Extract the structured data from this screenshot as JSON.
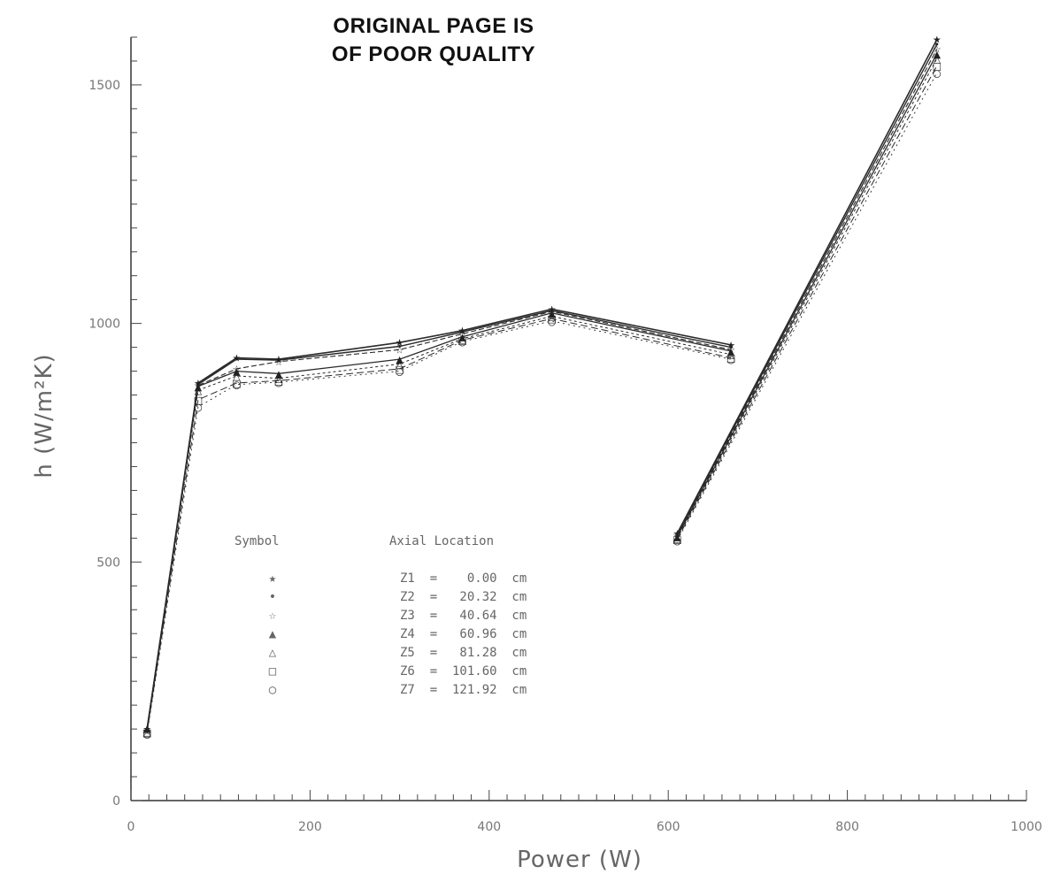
{
  "stamp": {
    "line1": "ORIGINAL PAGE IS",
    "line2": "OF POOR QUALITY"
  },
  "chart_data": {
    "type": "line",
    "xlabel": "Power (W)",
    "ylabel": "h (W/m²K)",
    "xlim": [
      0,
      1000
    ],
    "ylim": [
      0,
      1600
    ],
    "x_ticks": [
      "0",
      "200",
      "400",
      "600",
      "800",
      "1000"
    ],
    "y_ticks": [
      "0",
      "500",
      "1000",
      "1500"
    ],
    "grid": false,
    "legend": {
      "header_symbol": "Symbol",
      "header_location": "Axial Location",
      "entries": [
        {
          "symbol": "★",
          "label": "Z1  =    0.00  cm"
        },
        {
          "symbol": "•",
          "label": "Z2  =   20.32  cm"
        },
        {
          "symbol": "☆",
          "label": "Z3  =   40.64  cm"
        },
        {
          "symbol": "▲",
          "label": "Z4  =   60.96  cm"
        },
        {
          "symbol": "△",
          "label": "Z5  =   81.28  cm"
        },
        {
          "symbol": "□",
          "label": "Z6  =  101.60  cm"
        },
        {
          "symbol": "○",
          "label": "Z7  =  121.92  cm"
        }
      ]
    },
    "series": [
      {
        "marker": "★",
        "points": [
          [
            18,
            150
          ],
          [
            75,
            875
          ],
          [
            118,
            928
          ],
          [
            165,
            925
          ],
          [
            300,
            960
          ],
          [
            370,
            985
          ],
          [
            470,
            1030
          ],
          [
            670,
            955
          ],
          [
            610,
            560
          ],
          [
            900,
            1595
          ]
        ]
      },
      {
        "marker": "•",
        "points": [
          [
            18,
            148
          ],
          [
            75,
            872
          ],
          [
            118,
            925
          ],
          [
            165,
            923
          ],
          [
            300,
            952
          ],
          [
            370,
            982
          ],
          [
            470,
            1027
          ],
          [
            670,
            950
          ],
          [
            610,
            558
          ],
          [
            900,
            1585
          ]
        ]
      },
      {
        "marker": "☆",
        "points": [
          [
            18,
            146
          ],
          [
            75,
            870
          ],
          [
            118,
            905
          ],
          [
            165,
            920
          ],
          [
            300,
            945
          ],
          [
            370,
            978
          ],
          [
            470,
            1025
          ],
          [
            670,
            945
          ],
          [
            610,
            555
          ],
          [
            900,
            1575
          ]
        ]
      },
      {
        "marker": "▲",
        "points": [
          [
            18,
            152
          ],
          [
            75,
            868
          ],
          [
            118,
            900
          ],
          [
            165,
            895
          ],
          [
            300,
            925
          ],
          [
            370,
            972
          ],
          [
            470,
            1022
          ],
          [
            670,
            942
          ],
          [
            610,
            553
          ],
          [
            900,
            1565
          ]
        ]
      },
      {
        "marker": "△",
        "points": [
          [
            18,
            145
          ],
          [
            75,
            860
          ],
          [
            118,
            890
          ],
          [
            165,
            885
          ],
          [
            300,
            915
          ],
          [
            370,
            968
          ],
          [
            470,
            1015
          ],
          [
            670,
            935
          ],
          [
            610,
            550
          ],
          [
            900,
            1555
          ]
        ]
      },
      {
        "marker": "□",
        "points": [
          [
            18,
            143
          ],
          [
            75,
            840
          ],
          [
            118,
            875
          ],
          [
            165,
            880
          ],
          [
            300,
            905
          ],
          [
            370,
            965
          ],
          [
            470,
            1010
          ],
          [
            670,
            928
          ],
          [
            610,
            548
          ],
          [
            900,
            1540
          ]
        ]
      },
      {
        "marker": "○",
        "points": [
          [
            18,
            140
          ],
          [
            75,
            825
          ],
          [
            118,
            872
          ],
          [
            165,
            877
          ],
          [
            300,
            900
          ],
          [
            370,
            962
          ],
          [
            470,
            1005
          ],
          [
            670,
            925
          ],
          [
            610,
            545
          ],
          [
            900,
            1525
          ]
        ]
      }
    ]
  }
}
